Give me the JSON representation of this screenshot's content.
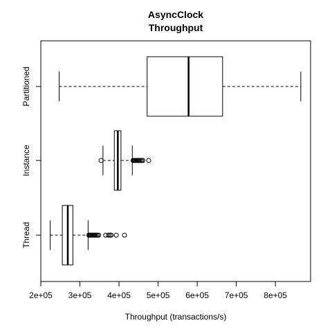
{
  "chart_data": {
    "type": "boxplot",
    "orientation": "horizontal",
    "title": [
      "AsyncClock",
      "Throughput"
    ],
    "xlabel": "Throughput (transactions/s)",
    "ylabel": "",
    "xlim": [
      200000,
      890000
    ],
    "x_ticks": [
      200000,
      300000,
      400000,
      500000,
      600000,
      700000,
      800000
    ],
    "x_tick_labels": [
      "2e+05",
      "3e+05",
      "4e+05",
      "5e+05",
      "6e+05",
      "7e+05",
      "8e+05"
    ],
    "grid": false,
    "legend": "none",
    "categories": [
      "Thread",
      "Instance",
      "Partitioned"
    ],
    "boxes": [
      {
        "name": "Thread",
        "whisker_low": 224000,
        "q1": 255000,
        "median": 269000,
        "q3": 282000,
        "whisker_high": 321000,
        "outliers": [
          323000,
          325000,
          327000,
          329000,
          331000,
          333000,
          335000,
          337000,
          339000,
          342000,
          345000,
          348000,
          366000,
          373000,
          377000,
          380000,
          393000,
          414000
        ]
      },
      {
        "name": "Instance",
        "whisker_low": 359000,
        "q1": 388000,
        "median": 397000,
        "q3": 405000,
        "whisker_high": 434000,
        "outliers": [
          354000,
          436000,
          438000,
          440000,
          442000,
          444000,
          446000,
          448000,
          450000,
          452000,
          455000,
          458000,
          461000,
          476000
        ]
      },
      {
        "name": "Partitioned",
        "whisker_low": 247000,
        "q1": 472000,
        "median": 578000,
        "q3": 665000,
        "whisker_high": 865000,
        "outliers": []
      }
    ],
    "colors": {
      "stroke": "#000000",
      "box_fill": "#ffffff"
    }
  }
}
